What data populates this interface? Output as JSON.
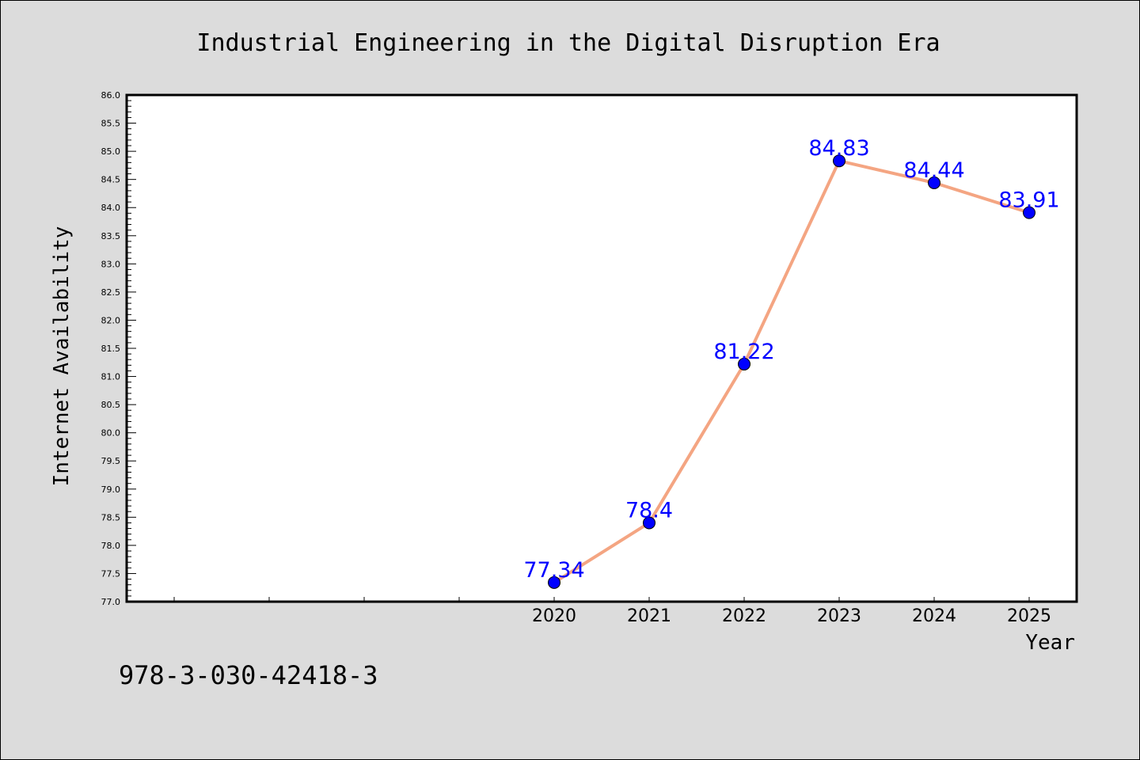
{
  "chart_data": {
    "type": "line",
    "title": "Industrial Engineering in the Digital Disruption Era",
    "xlabel": "Year",
    "ylabel": "Internet Availability",
    "x": [
      "2020",
      "2021",
      "2022",
      "2023",
      "2024",
      "2025"
    ],
    "series": [
      {
        "values": [
          77.34,
          78.4,
          81.22,
          84.83,
          84.44,
          83.91
        ]
      }
    ],
    "data_labels": [
      "77.34",
      "78.4",
      "81.22",
      "84.83",
      "84.44",
      "83.91"
    ],
    "xlim": [
      2015.5,
      2025.5
    ],
    "ylim": [
      77.0,
      86.0
    ],
    "ytick_step": 0.5,
    "y_minor_step": 0.1,
    "grid": false,
    "colors": {
      "line": "#f4a582",
      "marker": "#0000ff",
      "data_label": "#0000ff",
      "plot_background": "#ffffff",
      "figure_background": "#dcdcdc"
    }
  },
  "footer": {
    "isbn": "978-3-030-42418-3"
  }
}
